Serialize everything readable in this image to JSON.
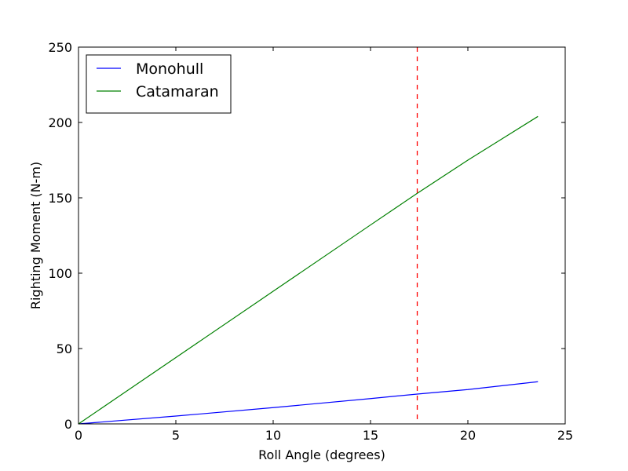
{
  "chart_data": {
    "type": "line",
    "title": "",
    "xlabel": "Roll Angle (degrees)",
    "ylabel": "Righting Moment (N-m)",
    "xlim": [
      0,
      25
    ],
    "ylim": [
      0,
      250
    ],
    "xticks": [
      0,
      5,
      10,
      15,
      20,
      25
    ],
    "yticks": [
      0,
      50,
      100,
      150,
      200,
      250
    ],
    "grid": false,
    "legend_position": "top-left",
    "series": [
      {
        "name": "Monohull",
        "color": "#0000ff",
        "x": [
          0,
          5,
          10,
          15,
          17.4,
          20,
          23.6
        ],
        "y": [
          0,
          5.2,
          10.8,
          16.8,
          19.8,
          22.8,
          28
        ]
      },
      {
        "name": "Catamaran",
        "color": "#008000",
        "x": [
          0,
          5,
          10,
          15,
          17.4,
          20,
          23.6
        ],
        "y": [
          0,
          44,
          88,
          132,
          153,
          175,
          204
        ]
      }
    ],
    "annotations": [
      {
        "type": "vertical-dashed-line",
        "x": 17.4,
        "color": "#ff0000"
      }
    ]
  }
}
